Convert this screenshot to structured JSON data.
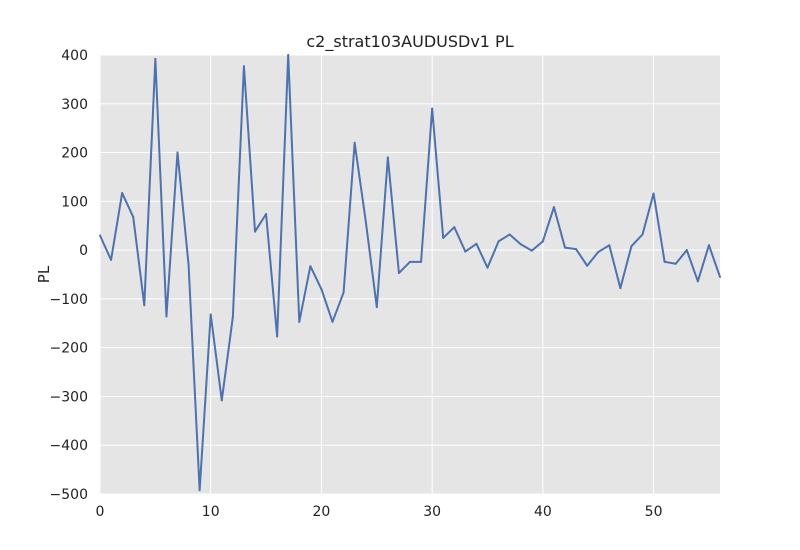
{
  "chart_data": {
    "type": "line",
    "title": "c2_strat103AUDUSDv1 PL",
    "xlabel": "",
    "ylabel": "PL",
    "xlim": [
      0,
      56
    ],
    "ylim": [
      -500,
      400
    ],
    "x_ticks": [
      0,
      10,
      20,
      30,
      40,
      50
    ],
    "y_ticks": [
      400,
      300,
      200,
      100,
      0,
      -100,
      -200,
      -300,
      -400,
      -500
    ],
    "x_tick_labels": [
      "0",
      "10",
      "20",
      "30",
      "40",
      "50"
    ],
    "y_tick_labels": [
      "400",
      "300",
      "200",
      "100",
      "0",
      "−100",
      "−200",
      "−300",
      "−400",
      "−500"
    ],
    "grid": true,
    "colors": {
      "background": "#e5e5e5",
      "grid": "#ffffff",
      "line": "#4c72b0"
    },
    "series": [
      {
        "x": [
          0,
          1,
          2,
          3,
          4,
          5,
          6,
          7,
          8,
          9,
          10,
          11,
          12,
          13,
          14,
          15,
          16,
          17,
          18,
          19,
          20,
          21,
          22,
          23,
          24,
          25,
          26,
          27,
          28,
          29,
          30,
          31,
          32,
          33,
          34,
          35,
          36,
          37,
          38,
          39,
          40,
          41,
          42,
          43,
          44,
          45,
          46,
          47,
          48,
          49,
          50,
          51,
          52,
          53,
          54,
          55,
          56
        ],
        "values": [
          30,
          -20,
          117,
          68,
          -113,
          392,
          -136,
          200,
          -30,
          -492,
          -132,
          -308,
          -137,
          377,
          38,
          74,
          -177,
          400,
          -147,
          -33,
          -80,
          -147,
          -87,
          220,
          60,
          -117,
          190,
          -47,
          -24,
          -24,
          290,
          25,
          47,
          -3,
          13,
          -36,
          18,
          32,
          12,
          -1,
          18,
          88,
          5,
          2,
          -32,
          -4,
          10,
          -78,
          8,
          32,
          116,
          -24,
          -28,
          0,
          -64,
          10,
          -55
        ]
      }
    ]
  }
}
